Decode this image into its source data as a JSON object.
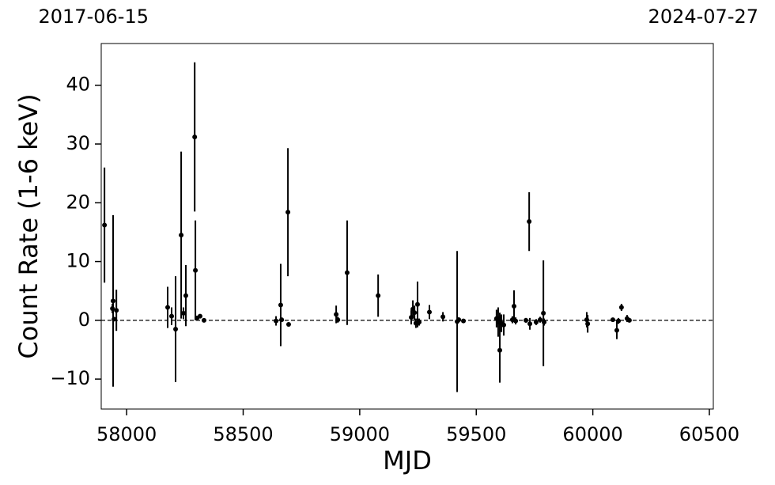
{
  "chart_data": {
    "type": "errorbar_scatter",
    "xlabel": "MJD",
    "ylabel": "Count Rate (1-6 keV)",
    "top_labels": [
      {
        "value": 57919,
        "label": "2017-06-15"
      },
      {
        "value": 60518,
        "label": "2024-07-27"
      }
    ],
    "xlim": [
      57891,
      60517
    ],
    "ylim": [
      -15.1,
      47.1
    ],
    "xticks": [
      58000,
      58500,
      59000,
      59500,
      60000,
      60500
    ],
    "yticks": [
      {
        "value": -10,
        "label": "−10"
      },
      0,
      10,
      20,
      30,
      40
    ],
    "reference_line": 0,
    "color": "#000000",
    "x": [
      57905,
      57939,
      57942,
      57946,
      57956,
      58176,
      58193,
      58210,
      58234,
      58244,
      58254,
      58292,
      58295,
      58302,
      58315,
      58332,
      58641,
      58661,
      58665,
      58692,
      58695,
      58899,
      58906,
      58946,
      59079,
      59221,
      59228,
      59235,
      59241,
      59248,
      59255,
      59299,
      59357,
      59418,
      59425,
      59445,
      59587,
      59594,
      59601,
      59601,
      59608,
      59618,
      59655,
      59662,
      59669,
      59713,
      59727,
      59730,
      59757,
      59774,
      59788,
      59791,
      59974,
      59978,
      60086,
      60103,
      60110,
      60123,
      60147,
      60157
    ],
    "values": [
      16.2,
      2.0,
      3.3,
      0.2,
      1.7,
      2.2,
      0.7,
      -1.5,
      14.5,
      1.2,
      4.2,
      31.2,
      8.5,
      0.4,
      0.7,
      0.0,
      -0.1,
      2.6,
      0.1,
      18.4,
      -0.7,
      1.0,
      0.1,
      8.1,
      4.2,
      0.5,
      1.9,
      1.3,
      -0.5,
      2.7,
      -0.3,
      1.4,
      0.6,
      -0.2,
      0.1,
      -0.1,
      0.3,
      -0.3,
      -5.1,
      0.3,
      -0.5,
      -0.8,
      0.1,
      2.4,
      -0.1,
      0.0,
      16.8,
      -0.6,
      -0.3,
      0.1,
      1.2,
      -0.3,
      0.1,
      -0.6,
      0.1,
      -1.7,
      -0.1,
      2.2,
      0.3,
      0.0
    ],
    "errors": [
      9.8,
      0.8,
      14.6,
      0.3,
      3.5,
      3.5,
      1.5,
      9.0,
      14.2,
      1.0,
      5.2,
      12.7,
      8.5,
      0.3,
      0.3,
      0.2,
      0.8,
      7.0,
      0.3,
      10.9,
      0.3,
      1.5,
      0.5,
      8.9,
      3.6,
      1.2,
      1.5,
      1.2,
      0.8,
      3.9,
      0.6,
      1.2,
      0.8,
      12.0,
      0.4,
      0.3,
      1.5,
      2.5,
      5.5,
      1.0,
      1.5,
      1.8,
      0.6,
      2.7,
      0.6,
      0.4,
      5.0,
      1.0,
      0.5,
      0.5,
      9.0,
      0.6,
      1.3,
      1.5,
      0.3,
      1.5,
      0.5,
      0.6,
      0.6,
      0.3
    ]
  }
}
